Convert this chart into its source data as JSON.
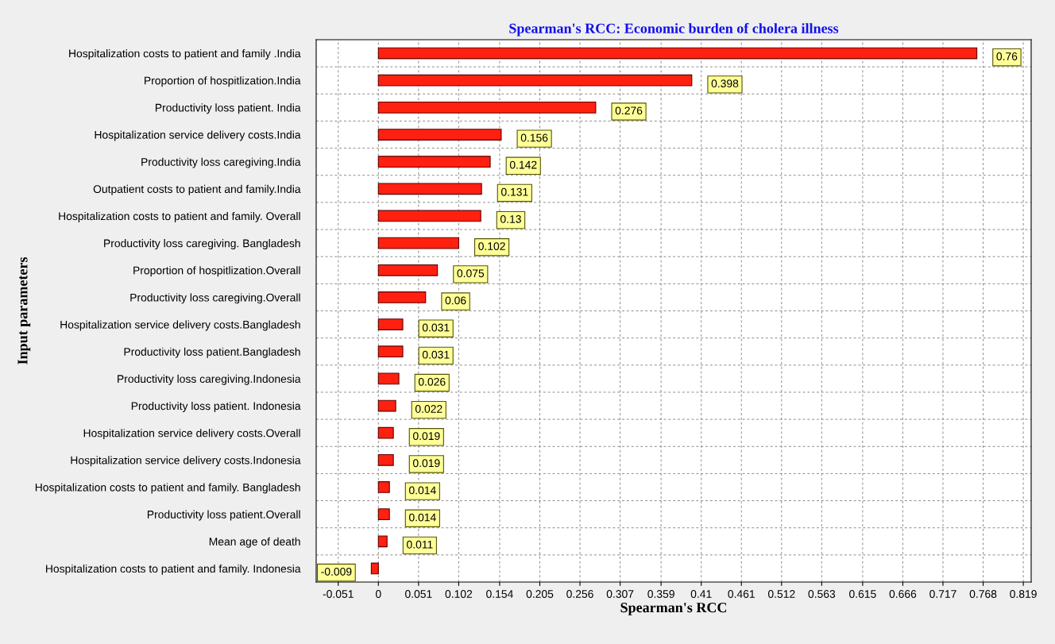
{
  "chart_data": {
    "type": "bar",
    "orientation": "horizontal",
    "title": "Spearman's RCC: Economic burden of cholera illness",
    "xlabel": "Spearman's RCC",
    "ylabel": "Input parameters",
    "categories": [
      "Hospitalization costs to patient and family .India",
      "Proportion of hospitlization.India",
      "Productivity loss patient. India",
      "Hospitalization service delivery costs.India",
      "Productivity loss caregiving.India",
      "Outpatient costs to patient and family.India",
      "Hospitalization costs to patient and family. Overall",
      "Productivity loss caregiving. Bangladesh",
      "Proportion of hospitlization.Overall",
      "Productivity loss caregiving.Overall",
      "Hospitalization service delivery costs.Bangladesh",
      "Productivity loss patient.Bangladesh",
      "Productivity loss caregiving.Indonesia",
      "Productivity loss patient. Indonesia",
      "Hospitalization service delivery costs.Overall",
      "Hospitalization service delivery costs.Indonesia",
      "Hospitalization costs to patient and family. Bangladesh",
      "Productivity loss patient.Overall",
      "Mean age of death",
      "Hospitalization costs to patient and family. Indonesia"
    ],
    "values": [
      0.76,
      0.398,
      0.276,
      0.156,
      0.142,
      0.131,
      0.13,
      0.102,
      0.075,
      0.06,
      0.031,
      0.031,
      0.026,
      0.022,
      0.019,
      0.019,
      0.014,
      0.014,
      0.011,
      -0.009
    ],
    "color": "#ff2010",
    "data_labels": true,
    "xlim": [
      -0.079,
      0.829
    ],
    "xticks": [
      -0.051,
      0,
      0.051,
      0.102,
      0.154,
      0.205,
      0.256,
      0.307,
      0.359,
      0.41,
      0.461,
      0.512,
      0.563,
      0.615,
      0.666,
      0.717,
      0.768,
      0.819
    ],
    "grid": true
  }
}
